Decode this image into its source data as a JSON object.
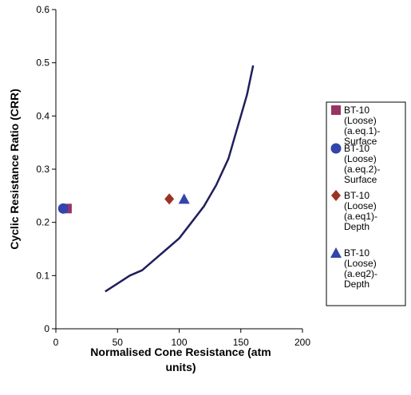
{
  "chart_data": {
    "type": "scatter",
    "title": "",
    "xlabel_lines": [
      "Normalised Cone Resistance (atm",
      "units)"
    ],
    "ylabel": "Cyclic Resistance Ratio (CRR)",
    "xlim": [
      0,
      200
    ],
    "ylim": [
      0,
      0.6
    ],
    "xticks": [
      "0",
      "50",
      "100",
      "150",
      "200"
    ],
    "yticks": [
      "0",
      "0.1",
      "0.2",
      "0.3",
      "0.4",
      "0.5",
      "0.6"
    ],
    "grid": false,
    "legend_position": "right",
    "curve": {
      "color": "#1f1f5c",
      "x": [
        40,
        50,
        60,
        70,
        80,
        90,
        100,
        110,
        120,
        130,
        140,
        145,
        150,
        155,
        160
      ],
      "y": [
        0.07,
        0.085,
        0.1,
        0.11,
        0.13,
        0.15,
        0.17,
        0.2,
        0.23,
        0.27,
        0.32,
        0.36,
        0.4,
        0.44,
        0.495
      ]
    },
    "series": [
      {
        "name_lines": [
          "BT-10",
          "(Loose)",
          "(a.eq.1)-",
          "Surface"
        ],
        "marker": "square",
        "color": "#993366",
        "x": [
          9
        ],
        "y": [
          0.226
        ]
      },
      {
        "name_lines": [
          "BT-10",
          "(Loose)",
          "(a.eq.2)-",
          "Surface"
        ],
        "marker": "circle",
        "color": "#3344aa",
        "x": [
          6
        ],
        "y": [
          0.226
        ]
      },
      {
        "name_lines": [
          "BT-10",
          "(Loose)",
          "(a.eq1)-",
          "Depth"
        ],
        "marker": "diamond",
        "color": "#993322",
        "x": [
          92
        ],
        "y": [
          0.244
        ]
      },
      {
        "name_lines": [
          "BT-10",
          "(Loose)",
          "(a.eq2)-",
          "Depth"
        ],
        "marker": "triangle",
        "color": "#3344aa",
        "x": [
          104
        ],
        "y": [
          0.244
        ]
      }
    ]
  }
}
